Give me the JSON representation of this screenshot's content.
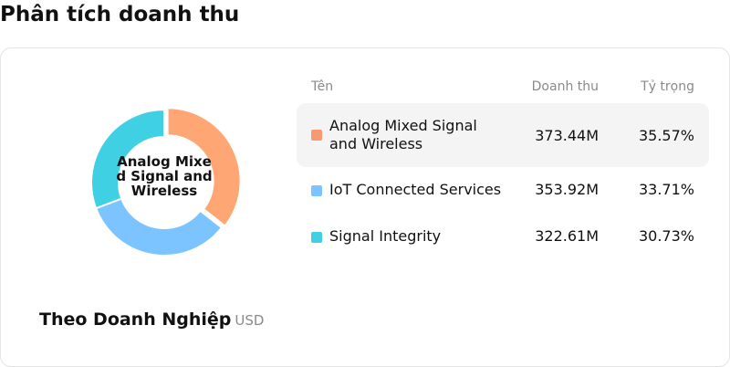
{
  "page": {
    "title": "Phân tích doanh thu"
  },
  "breakdown": {
    "label": "Theo Doanh Nghiệp",
    "unit": "USD"
  },
  "table": {
    "headers": {
      "name": "Tên",
      "revenue": "Doanh thu",
      "share": "Tỷ trọng"
    },
    "rows": [
      {
        "name": "Analog Mixed Signal and Wireless",
        "revenue": "373.44M",
        "share": "35.57%"
      },
      {
        "name": "IoT Connected Services",
        "revenue": "353.92M",
        "share": "33.71%"
      },
      {
        "name": "Signal Integrity",
        "revenue": "322.61M",
        "share": "30.73%"
      }
    ]
  },
  "colors": {
    "slice1": "#ffa774",
    "slice2": "#7cc4ff",
    "slice3": "#40d0e4",
    "swatch1": "#f79a72",
    "highlight": "#f4f4f4"
  },
  "chart_data": {
    "type": "pie",
    "center_label": "Analog Mixed Signal and Wireless",
    "categories": [
      "Analog Mixed Signal and Wireless",
      "IoT Connected Services",
      "Signal Integrity"
    ],
    "values": [
      373.44,
      353.92,
      322.61
    ],
    "percent": [
      35.57,
      33.71,
      30.73
    ],
    "unit": "USD"
  }
}
